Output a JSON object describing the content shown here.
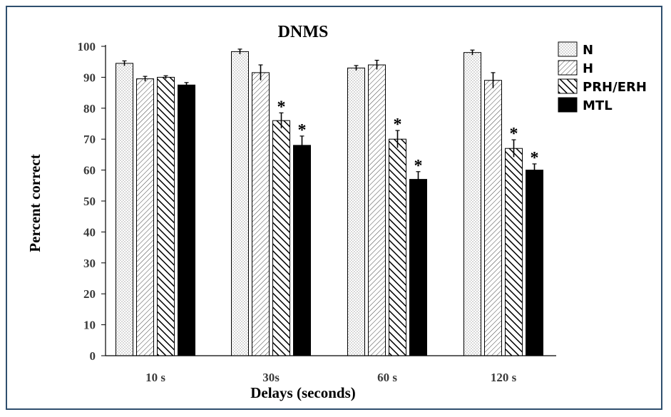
{
  "chart_data": {
    "type": "bar",
    "title": "DNMS",
    "xlabel": "Delays (seconds)",
    "ylabel": "Percent correct",
    "ylim": [
      0,
      100
    ],
    "yticks": [
      "0",
      "10",
      "20",
      "30",
      "40",
      "50",
      "60",
      "70",
      "80",
      "90",
      "100"
    ],
    "categories": [
      "10 s",
      "30s",
      "60 s",
      "120 s"
    ],
    "legend_position": "top-right",
    "significance_marker": "*",
    "series": [
      {
        "name": "N",
        "fill": "dots",
        "values": [
          94.5,
          98.3,
          93.0,
          98.0
        ],
        "errors": [
          0.8,
          0.8,
          0.8,
          0.8
        ],
        "significant": [
          false,
          false,
          false,
          false
        ]
      },
      {
        "name": "H",
        "fill": "hatch-light",
        "values": [
          89.5,
          91.5,
          94.0,
          89.0
        ],
        "errors": [
          0.8,
          2.5,
          1.5,
          2.5
        ],
        "significant": [
          false,
          false,
          false,
          false
        ]
      },
      {
        "name": "PRH/ERH",
        "fill": "hatch-bold",
        "values": [
          90.0,
          76.0,
          70.0,
          67.0
        ],
        "errors": [
          0.5,
          2.5,
          2.8,
          2.8
        ],
        "significant": [
          false,
          true,
          true,
          true
        ]
      },
      {
        "name": "MTL",
        "fill": "solid",
        "values": [
          87.5,
          68.0,
          57.0,
          60.0
        ],
        "errors": [
          0.8,
          3.0,
          2.5,
          2.0
        ],
        "significant": [
          false,
          true,
          true,
          true
        ]
      }
    ]
  }
}
